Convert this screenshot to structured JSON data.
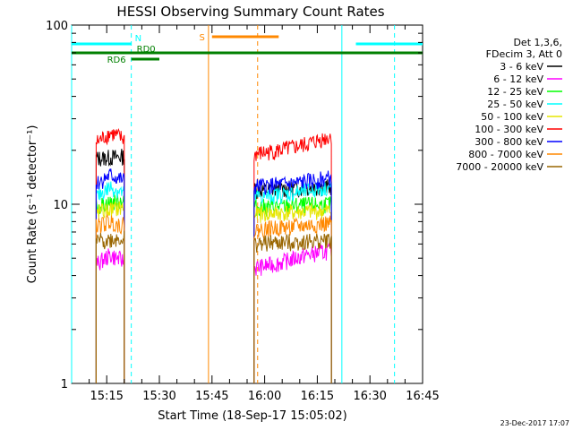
{
  "chart_data": {
    "type": "line",
    "title": "HESSI Observing Summary Count Rates",
    "xlabel": "Start Time (18-Sep-17 15:05:02)",
    "ylabel": "Count Rate (s⁻¹ detector⁻¹)",
    "yscale": "log",
    "ylim": [
      1,
      100
    ],
    "xlim": [
      "15:05",
      "16:45"
    ],
    "x_ticks": [
      "15:15",
      "15:30",
      "15:45",
      "16:00",
      "16:15",
      "16:30",
      "16:45"
    ],
    "y_ticks": [
      "1",
      "10",
      "100"
    ],
    "grid": false,
    "legend_position": "right",
    "legend_header": [
      "Det 1,3,6,",
      "FDecim 3, Att 0"
    ],
    "series": [
      {
        "name": "3 - 6 keV",
        "color": "#000000",
        "segments": [
          {
            "start": "15:12",
            "end": "15:20",
            "values": [
              18,
              18.5
            ]
          },
          {
            "start": "15:57",
            "end": "16:19",
            "values": [
              12,
              12.5
            ]
          }
        ]
      },
      {
        "name": "6 - 12 keV",
        "color": "#ff00ff",
        "segments": [
          {
            "start": "15:12",
            "end": "15:20",
            "values": [
              4.6,
              5.2,
              4.8
            ]
          },
          {
            "start": "15:57",
            "end": "16:19",
            "values": [
              4.4,
              4.7,
              5.2,
              5.5
            ]
          }
        ]
      },
      {
        "name": "12 - 25 keV",
        "color": "#00ff00",
        "segments": [
          {
            "start": "15:12",
            "end": "15:20",
            "values": [
              9.8,
              10.6
            ]
          },
          {
            "start": "15:57",
            "end": "16:19",
            "values": [
              9.6,
              10
            ]
          }
        ]
      },
      {
        "name": "25 - 50 keV",
        "color": "#00ffff",
        "segments": [
          {
            "start": "15:12",
            "end": "15:20",
            "values": [
              11,
              12.5,
              11.5
            ]
          },
          {
            "start": "15:57",
            "end": "16:19",
            "values": [
              11,
              11.5,
              12.5
            ]
          }
        ]
      },
      {
        "name": "50 - 100 keV",
        "color": "#e6e600",
        "segments": [
          {
            "start": "15:12",
            "end": "15:20",
            "values": [
              9,
              9.6
            ]
          },
          {
            "start": "15:57",
            "end": "16:19",
            "values": [
              8.8,
              9.2
            ]
          }
        ]
      },
      {
        "name": "100 - 300 keV",
        "color": "#ff0000",
        "segments": [
          {
            "start": "15:12",
            "end": "15:20",
            "values": [
              22,
              25,
              23
            ]
          },
          {
            "start": "15:57",
            "end": "16:19",
            "values": [
              19,
              20,
              21.5,
              24
            ]
          }
        ]
      },
      {
        "name": "300 - 800 keV",
        "color": "#0000ff",
        "segments": [
          {
            "start": "15:12",
            "end": "15:20",
            "values": [
              13,
              14.5,
              13.5
            ]
          },
          {
            "start": "15:57",
            "end": "16:19",
            "values": [
              12.5,
              13,
              14
            ]
          }
        ]
      },
      {
        "name": "800 - 7000 keV",
        "color": "#ff8800",
        "segments": [
          {
            "start": "15:12",
            "end": "15:20",
            "values": [
              7.5,
              8,
              7.6
            ]
          },
          {
            "start": "15:57",
            "end": "16:19",
            "values": [
              7.2,
              7.5,
              7.8
            ]
          }
        ]
      },
      {
        "name": "7000 - 20000 keV",
        "color": "#996600",
        "segments": [
          {
            "start": "15:12",
            "end": "15:20",
            "values": [
              6.2,
              6.5
            ]
          },
          {
            "start": "15:57",
            "end": "16:19",
            "values": [
              6,
              6.3
            ]
          }
        ]
      }
    ],
    "state_bars": [
      {
        "label": "N",
        "color": "#00ffff",
        "start": "15:05",
        "end": "15:22"
      },
      {
        "label": "",
        "color": "#00ffff",
        "start": "16:26",
        "end": "16:45"
      },
      {
        "label": "S",
        "color": "#ff8800",
        "start": "15:45",
        "end": "16:04"
      },
      {
        "label": "RD0",
        "color": "#008000",
        "start": "15:05",
        "end": "16:45"
      },
      {
        "label": "RD6",
        "color": "#008000",
        "start": "15:22",
        "end": "15:30"
      }
    ],
    "vertical_markers": [
      {
        "time": "15:05",
        "color": "#00ffff",
        "style": "solid"
      },
      {
        "time": "15:22",
        "color": "#00ffff",
        "style": "dashed"
      },
      {
        "time": "15:44",
        "color": "#ff8800",
        "style": "solid"
      },
      {
        "time": "15:58",
        "color": "#ff8800",
        "style": "dashed"
      },
      {
        "time": "16:22",
        "color": "#00ffff",
        "style": "solid"
      },
      {
        "time": "16:37",
        "color": "#00ffff",
        "style": "dashed"
      }
    ]
  },
  "footer": {
    "date": "23-Dec-2017 17:07"
  }
}
